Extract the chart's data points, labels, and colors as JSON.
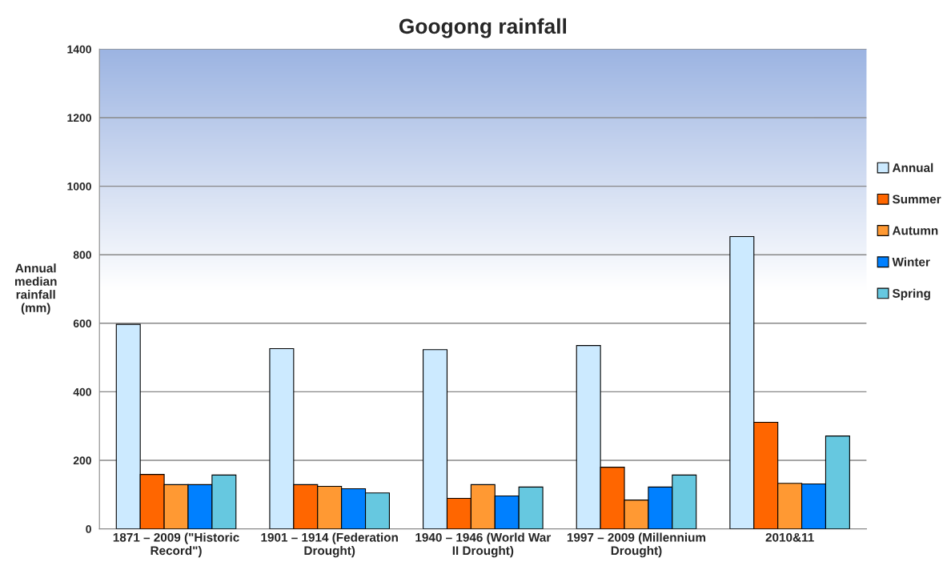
{
  "chart_data": {
    "type": "bar",
    "title": "Googong rainfall",
    "ylabel": "Annual\nmedian\nrainfall\n(mm)",
    "categories": [
      "1871 – 2009 (\"Historic\nRecord\")",
      "1901 – 1914 (Federation\nDrought)",
      "1940 – 1946 (World War\nII Drought)",
      "1997 – 2009 (Millennium\nDrought)",
      "2010&11"
    ],
    "series": [
      {
        "name": "Annual",
        "color": "#cceaff",
        "values": [
          597,
          526,
          523,
          535,
          853
        ]
      },
      {
        "name": "Summer",
        "color": "#ff6600",
        "values": [
          159,
          129,
          89,
          180,
          311
        ]
      },
      {
        "name": "Autumn",
        "color": "#ff9933",
        "values": [
          129,
          124,
          129,
          84,
          133
        ]
      },
      {
        "name": "Winter",
        "color": "#0080ff",
        "values": [
          129,
          117,
          96,
          122,
          131
        ]
      },
      {
        "name": "Spring",
        "color": "#66c8e0",
        "values": [
          157,
          105,
          122,
          157,
          271
        ]
      }
    ],
    "ylim": [
      0,
      1400
    ],
    "yticks": [
      0,
      200,
      400,
      600,
      800,
      1000,
      1200,
      1400
    ],
    "grid": "y",
    "legend": "right"
  }
}
